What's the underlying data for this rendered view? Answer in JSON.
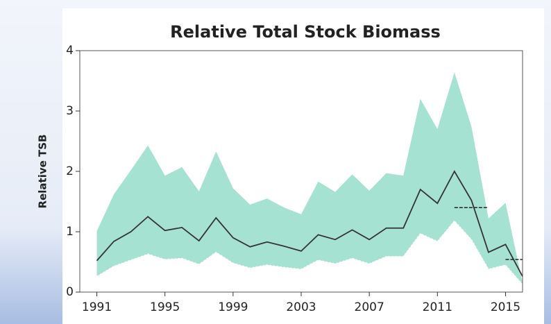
{
  "chart_data": {
    "type": "line",
    "title": "Relative Total Stock Biomass",
    "y_label": "Relative TSB",
    "x": [
      1991,
      1992,
      1993,
      1994,
      1995,
      1996,
      1997,
      1998,
      1999,
      2000,
      2001,
      2002,
      2003,
      2004,
      2005,
      2006,
      2007,
      2008,
      2009,
      2010,
      2011,
      2012,
      2013,
      2014,
      2015,
      2016
    ],
    "values": [
      0.52,
      0.84,
      1.0,
      1.25,
      1.02,
      1.07,
      0.85,
      1.23,
      0.9,
      0.75,
      0.83,
      0.76,
      0.68,
      0.95,
      0.87,
      1.03,
      0.87,
      1.06,
      1.06,
      1.7,
      1.47,
      2.0,
      1.52,
      0.66,
      0.79,
      0.26
    ],
    "band_upper": [
      1.01,
      1.62,
      2.02,
      2.43,
      1.93,
      2.07,
      1.67,
      2.33,
      1.72,
      1.45,
      1.55,
      1.4,
      1.29,
      1.83,
      1.66,
      1.95,
      1.68,
      1.97,
      1.93,
      3.2,
      2.7,
      3.64,
      2.74,
      1.22,
      1.48,
      0.15
    ],
    "band_lower": [
      0.26,
      0.43,
      0.53,
      0.63,
      0.54,
      0.56,
      0.46,
      0.66,
      0.48,
      0.4,
      0.45,
      0.41,
      0.38,
      0.53,
      0.47,
      0.56,
      0.47,
      0.59,
      0.59,
      0.97,
      0.84,
      1.18,
      0.87,
      0.38,
      0.45,
      0.13
    ],
    "line_color": "#333333",
    "band_color": "#a6e2d2",
    "reference_segments": [
      {
        "x": [
          2012,
          2014
        ],
        "y": 1.4
      },
      {
        "x": [
          2015,
          2016
        ],
        "y": 0.54
      }
    ],
    "xlim": [
      1990,
      2016
    ],
    "ylim": [
      0,
      4
    ],
    "xticks": [
      1991,
      1995,
      1999,
      2003,
      2007,
      2011,
      2015
    ],
    "yticks": [
      0,
      1,
      2,
      3,
      4
    ]
  }
}
